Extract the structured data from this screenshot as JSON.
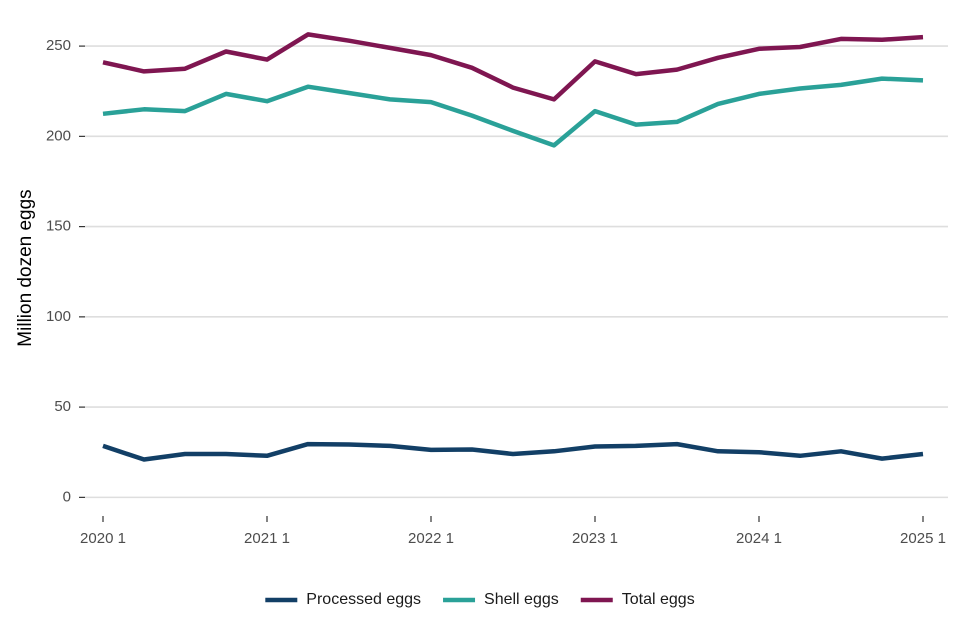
{
  "chart_data": {
    "type": "line",
    "title": "",
    "xlabel": "",
    "ylabel": "Million dozen eggs",
    "ylim": [
      -7,
      270
    ],
    "y_ticks": [
      0,
      50,
      100,
      150,
      200,
      250
    ],
    "y_tick_labels": [
      "0",
      "50",
      "100",
      "150",
      "200",
      "250"
    ],
    "x_ticks": [
      2020,
      2021,
      2022,
      2023,
      2024,
      2025
    ],
    "x_tick_labels": [
      "2020 1",
      "2021 1",
      "2022 1",
      "2023 1",
      "2024 1",
      "2025 1"
    ],
    "x_label_format": "year quarter",
    "grid": "horizontal",
    "legend_position": "bottom",
    "x": [
      "2020 Q1",
      "2020 Q2",
      "2020 Q3",
      "2020 Q4",
      "2021 Q1",
      "2021 Q2",
      "2021 Q3",
      "2021 Q4",
      "2022 Q1",
      "2022 Q2",
      "2022 Q3",
      "2022 Q4",
      "2023 Q1",
      "2023 Q2",
      "2023 Q3",
      "2023 Q4",
      "2024 Q1",
      "2024 Q2",
      "2024 Q3",
      "2024 Q4",
      "2025 Q1"
    ],
    "series": [
      {
        "name": "Processed eggs",
        "color": "#123f66",
        "values": [
          28.5,
          21,
          24,
          24,
          23,
          29.5,
          29.3,
          28.5,
          26.3,
          26.5,
          24,
          25.5,
          28.2,
          28.5,
          29.5,
          25.5,
          25,
          23,
          25.5,
          21.5,
          24
        ]
      },
      {
        "name": "Shell eggs",
        "color": "#2aa198",
        "values": [
          212.5,
          215,
          214,
          223.5,
          219.5,
          227.5,
          224,
          220.5,
          219,
          211.5,
          203,
          195,
          214,
          206.5,
          208,
          218,
          223.5,
          226.5,
          228.5,
          232,
          231
        ]
      },
      {
        "name": "Total eggs",
        "color": "#7f1651",
        "values": [
          241,
          236,
          237.5,
          247,
          242.5,
          256.5,
          253,
          249,
          245,
          238,
          227,
          220.5,
          241.5,
          234.5,
          237,
          243.5,
          248.5,
          249.5,
          254,
          253.5,
          255
        ]
      }
    ]
  }
}
